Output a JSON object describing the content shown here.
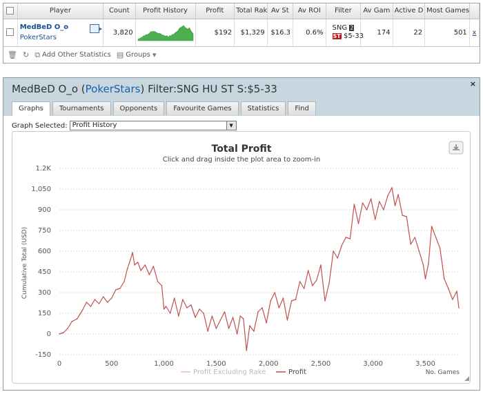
{
  "stats_table": {
    "headers": [
      "Player",
      "Count",
      "Profit History",
      "Profit",
      "Total Rak",
      "Av St",
      "Av ROI",
      "Filter",
      "Av Gam",
      "Active D",
      "Most Games"
    ],
    "row": {
      "player_name": "MedBeD O_o",
      "site": "PokerStars",
      "count": "3,820",
      "profit": "$192",
      "total_rake": "$1,329",
      "av_stake": "$16.3",
      "av_roi": "0.6%",
      "filter_game": "SNG",
      "filter_badge_players": "2",
      "filter_badge_type": "ST",
      "filter_stakes": "$5-33",
      "av_games": "174",
      "active_days": "22",
      "most_games": "501",
      "remove": "x"
    }
  },
  "toolbar": {
    "add_stats_label": "Add Other Statistics",
    "groups_label": "Groups"
  },
  "window": {
    "title_player": "MedBeD O_o",
    "title_site": "PokerStars",
    "title_filter": "Filter:SNG HU ST S:$5-33",
    "close": "×",
    "tabs": [
      "Graphs",
      "Tournaments",
      "Opponents",
      "Favourite Games",
      "Statistics",
      "Find"
    ],
    "active_tab": "Graphs",
    "graph_selected_label": "Graph Selected:",
    "graph_selected_value": "Profit History"
  },
  "colors": {
    "profit_line": "#c0504d",
    "excluding_rake_line": "#f0b8b8",
    "sparkline": "#4caf50"
  },
  "chart_data": {
    "type": "line",
    "title": "Total Profit",
    "subtitle": "Click and drag inside the plot area to zoom-in",
    "xlabel": "No. Games",
    "ylabel": "Cumulative Total (USD)",
    "xlim": [
      0,
      3820
    ],
    "ylim": [
      -150,
      1200
    ],
    "x_ticks": [
      0,
      500,
      1000,
      1500,
      2000,
      2500,
      3000,
      3500
    ],
    "x_tick_labels": [
      "0",
      "500",
      "1,000",
      "1,500",
      "2,000",
      "2,500",
      "3,000",
      "3,500"
    ],
    "y_ticks": [
      -150,
      0,
      150,
      300,
      450,
      600,
      750,
      900,
      1050,
      1200
    ],
    "y_tick_labels": [
      "-150",
      "0",
      "150",
      "300",
      "450",
      "600",
      "750",
      "900",
      "1,050",
      "1.2K"
    ],
    "grid": "horizontal",
    "legend": "bottom-center",
    "series": [
      {
        "name": "Profit Excluding Rake",
        "x": [],
        "y": []
      },
      {
        "name": "Profit",
        "x": [
          0,
          40,
          80,
          120,
          170,
          220,
          260,
          300,
          340,
          380,
          420,
          460,
          500,
          540,
          580,
          620,
          650,
          680,
          700,
          720,
          750,
          780,
          820,
          860,
          900,
          940,
          980,
          1000,
          1020,
          1060,
          1100,
          1140,
          1180,
          1220,
          1260,
          1300,
          1340,
          1380,
          1420,
          1460,
          1500,
          1540,
          1580,
          1620,
          1660,
          1700,
          1730,
          1760,
          1790,
          1820,
          1860,
          1900,
          1940,
          1980,
          2020,
          2060,
          2100,
          2140,
          2180,
          2220,
          2260,
          2300,
          2340,
          2380,
          2420,
          2460,
          2500,
          2540,
          2580,
          2620,
          2660,
          2700,
          2740,
          2780,
          2820,
          2860,
          2900,
          2940,
          2980,
          3020,
          3060,
          3100,
          3140,
          3180,
          3210,
          3240,
          3280,
          3320,
          3360,
          3400,
          3440,
          3480,
          3500,
          3530,
          3560,
          3600,
          3640,
          3680,
          3720,
          3760,
          3800,
          3820
        ],
        "y": [
          0,
          10,
          40,
          90,
          110,
          170,
          230,
          200,
          250,
          220,
          270,
          230,
          260,
          320,
          330,
          380,
          470,
          540,
          590,
          500,
          520,
          460,
          500,
          430,
          490,
          380,
          350,
          180,
          200,
          150,
          260,
          130,
          250,
          190,
          210,
          120,
          180,
          150,
          20,
          130,
          40,
          100,
          160,
          40,
          120,
          0,
          130,
          110,
          -120,
          60,
          20,
          160,
          190,
          80,
          240,
          300,
          190,
          260,
          100,
          240,
          250,
          380,
          330,
          460,
          350,
          390,
          500,
          240,
          370,
          600,
          550,
          640,
          700,
          690,
          940,
          800,
          950,
          900,
          980,
          830,
          960,
          900,
          1000,
          1060,
          930,
          1010,
          860,
          850,
          650,
          700,
          600,
          500,
          400,
          510,
          780,
          700,
          620,
          400,
          330,
          250,
          310,
          190
        ]
      }
    ]
  },
  "profit_sparkline": {
    "values": [
      0,
      2,
      4,
      6,
      7,
      10,
      14,
      12,
      16,
      18,
      17,
      20,
      22,
      26,
      30,
      28,
      31,
      29,
      30,
      27,
      25,
      24,
      22,
      23,
      21,
      20,
      15,
      16,
      14,
      13,
      12,
      14,
      10,
      9,
      15,
      12,
      16,
      19,
      18,
      22,
      26,
      28,
      30,
      34,
      40,
      45,
      44,
      48,
      50,
      52,
      46,
      43,
      42,
      38,
      40,
      44,
      36,
      30,
      26,
      20
    ]
  }
}
